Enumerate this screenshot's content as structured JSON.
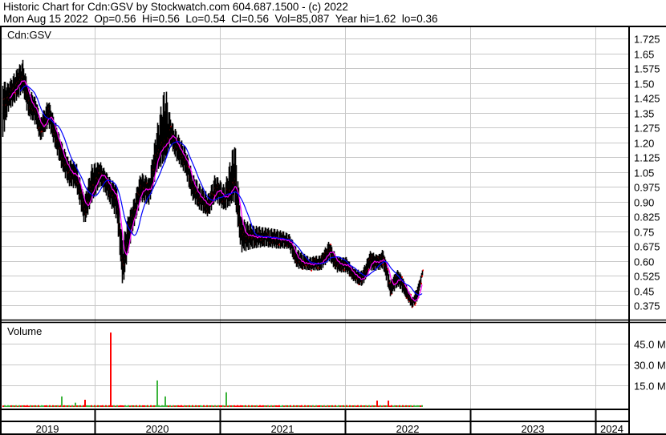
{
  "header": {
    "title": "Historic Chart for Cdn:GSV by Stockwatch.com 604.687.1500 - (c) 2022",
    "quote_line": "Mon Aug 15 2022  Op=0.56  Hi=0.56  Lo=0.54  Cl=0.56  Vol=85,087  Year hi=1.62  lo=0.36"
  },
  "chart_data": [
    {
      "type": "line",
      "panel": "price",
      "label": "Cdn:GSV",
      "ylim": [
        0.3,
        1.8
      ],
      "yticks": [
        "1.725",
        "1.65",
        "1.575",
        "1.50",
        "1.425",
        "1.35",
        "1.275",
        "1.20",
        "1.125",
        "1.05",
        "0.975",
        "0.90",
        "0.825",
        "0.75",
        "0.675",
        "0.60",
        "0.525",
        "0.45",
        "0.375"
      ],
      "grid": true,
      "colors": {
        "bars": "#000000",
        "close_tick": "#ff0000",
        "ma_short": "#ff00ff",
        "ma_long": "#0000ff"
      },
      "columns": [
        "date",
        "high",
        "low",
        "close"
      ],
      "points": [
        [
          "2019-04-06",
          1.52,
          1.2,
          1.39
        ],
        [
          "2019-04-22",
          1.5,
          1.35,
          1.43
        ],
        [
          "2019-06-04",
          1.62,
          1.45,
          1.53
        ],
        [
          "2019-06-20",
          1.48,
          1.33,
          1.41
        ],
        [
          "2019-07-14",
          1.42,
          1.28,
          1.35
        ],
        [
          "2019-07-25",
          1.32,
          1.2,
          1.25
        ],
        [
          "2019-08-18",
          1.42,
          1.28,
          1.35
        ],
        [
          "2019-09-22",
          1.22,
          1.08,
          1.15
        ],
        [
          "2019-10-15",
          1.12,
          0.98,
          1.05
        ],
        [
          "2019-11-07",
          1.1,
          0.96,
          1.03
        ],
        [
          "2019-12-01",
          0.92,
          0.78,
          0.85
        ],
        [
          "2019-12-24",
          1.1,
          0.9,
          0.97
        ],
        [
          "2020-01-17",
          1.1,
          0.98,
          1.05
        ],
        [
          "2020-02-10",
          1.03,
          0.9,
          0.97
        ],
        [
          "2020-03-05",
          0.98,
          0.8,
          0.91
        ],
        [
          "2020-03-22",
          0.7,
          0.46,
          0.54
        ],
        [
          "2020-04-05",
          0.82,
          0.62,
          0.74
        ],
        [
          "2020-04-21",
          0.9,
          0.75,
          0.83
        ],
        [
          "2020-05-14",
          1.05,
          0.9,
          0.97
        ],
        [
          "2020-06-07",
          1.02,
          0.88,
          0.95
        ],
        [
          "2020-06-30",
          1.28,
          1.05,
          1.15
        ],
        [
          "2020-07-24",
          1.5,
          1.1,
          1.19
        ],
        [
          "2020-08-09",
          1.32,
          1.18,
          1.25
        ],
        [
          "2020-08-28",
          1.25,
          1.1,
          1.17
        ],
        [
          "2020-09-20",
          1.18,
          1.04,
          1.11
        ],
        [
          "2020-10-13",
          1.04,
          0.9,
          0.97
        ],
        [
          "2020-11-05",
          0.98,
          0.85,
          0.91
        ],
        [
          "2020-11-28",
          0.94,
          0.82,
          0.87
        ],
        [
          "2020-12-17",
          1.04,
          0.9,
          0.97
        ],
        [
          "2021-01-14",
          0.98,
          0.85,
          0.91
        ],
        [
          "2021-02-12",
          1.22,
          0.9,
          1.0
        ],
        [
          "2021-03-03",
          0.82,
          0.64,
          0.74
        ],
        [
          "2021-04-07",
          0.78,
          0.66,
          0.72
        ],
        [
          "2021-05-12",
          0.77,
          0.67,
          0.72
        ],
        [
          "2021-06-16",
          0.76,
          0.66,
          0.71
        ],
        [
          "2021-07-20",
          0.74,
          0.66,
          0.7
        ],
        [
          "2021-08-13",
          0.66,
          0.56,
          0.6
        ],
        [
          "2021-09-17",
          0.62,
          0.55,
          0.58
        ],
        [
          "2021-10-22",
          0.63,
          0.55,
          0.59
        ],
        [
          "2021-11-14",
          0.7,
          0.6,
          0.66
        ],
        [
          "2021-12-08",
          0.62,
          0.54,
          0.58
        ],
        [
          "2022-01-03",
          0.62,
          0.54,
          0.58
        ],
        [
          "2022-01-27",
          0.56,
          0.49,
          0.52
        ],
        [
          "2022-02-19",
          0.55,
          0.47,
          0.5
        ],
        [
          "2022-03-14",
          0.65,
          0.55,
          0.6
        ],
        [
          "2022-04-07",
          0.63,
          0.55,
          0.59
        ],
        [
          "2022-04-21",
          0.66,
          0.56,
          0.62
        ],
        [
          "2022-05-12",
          0.5,
          0.42,
          0.46
        ],
        [
          "2022-06-04",
          0.56,
          0.47,
          0.52
        ],
        [
          "2022-06-27",
          0.48,
          0.41,
          0.44
        ],
        [
          "2022-07-14",
          0.41,
          0.36,
          0.38
        ],
        [
          "2022-08-01",
          0.48,
          0.4,
          0.44
        ],
        [
          "2022-08-15",
          0.56,
          0.54,
          0.56
        ]
      ]
    },
    {
      "type": "bar",
      "panel": "volume",
      "label": "Volume",
      "ylim": [
        0,
        55000000
      ],
      "yticks": [
        "45.0 M",
        "30.0 M",
        "15.0 M"
      ],
      "ytick_values": [
        45000000,
        30000000,
        15000000
      ],
      "grid": true,
      "colors": {
        "up": "#3cb43c",
        "down": "#ff0000"
      },
      "baseline_volume": 500000,
      "spikes": [
        [
          "2019-09-24",
          7000000,
          "up"
        ],
        [
          "2019-11-04",
          2500000,
          "up"
        ],
        [
          "2019-12-01",
          4600000,
          "down"
        ],
        [
          "2020-02-14",
          53000000,
          "down"
        ],
        [
          "2020-06-30",
          18500000,
          "up"
        ],
        [
          "2020-07-24",
          7000000,
          "up"
        ],
        [
          "2021-01-17",
          10000000,
          "up"
        ],
        [
          "2022-04-03",
          4000000,
          "down"
        ],
        [
          "2022-05-06",
          4000000,
          "down"
        ]
      ]
    }
  ],
  "x_axis": {
    "years": [
      "2019",
      "2020",
      "2021",
      "2022",
      "2023",
      "2024"
    ]
  }
}
